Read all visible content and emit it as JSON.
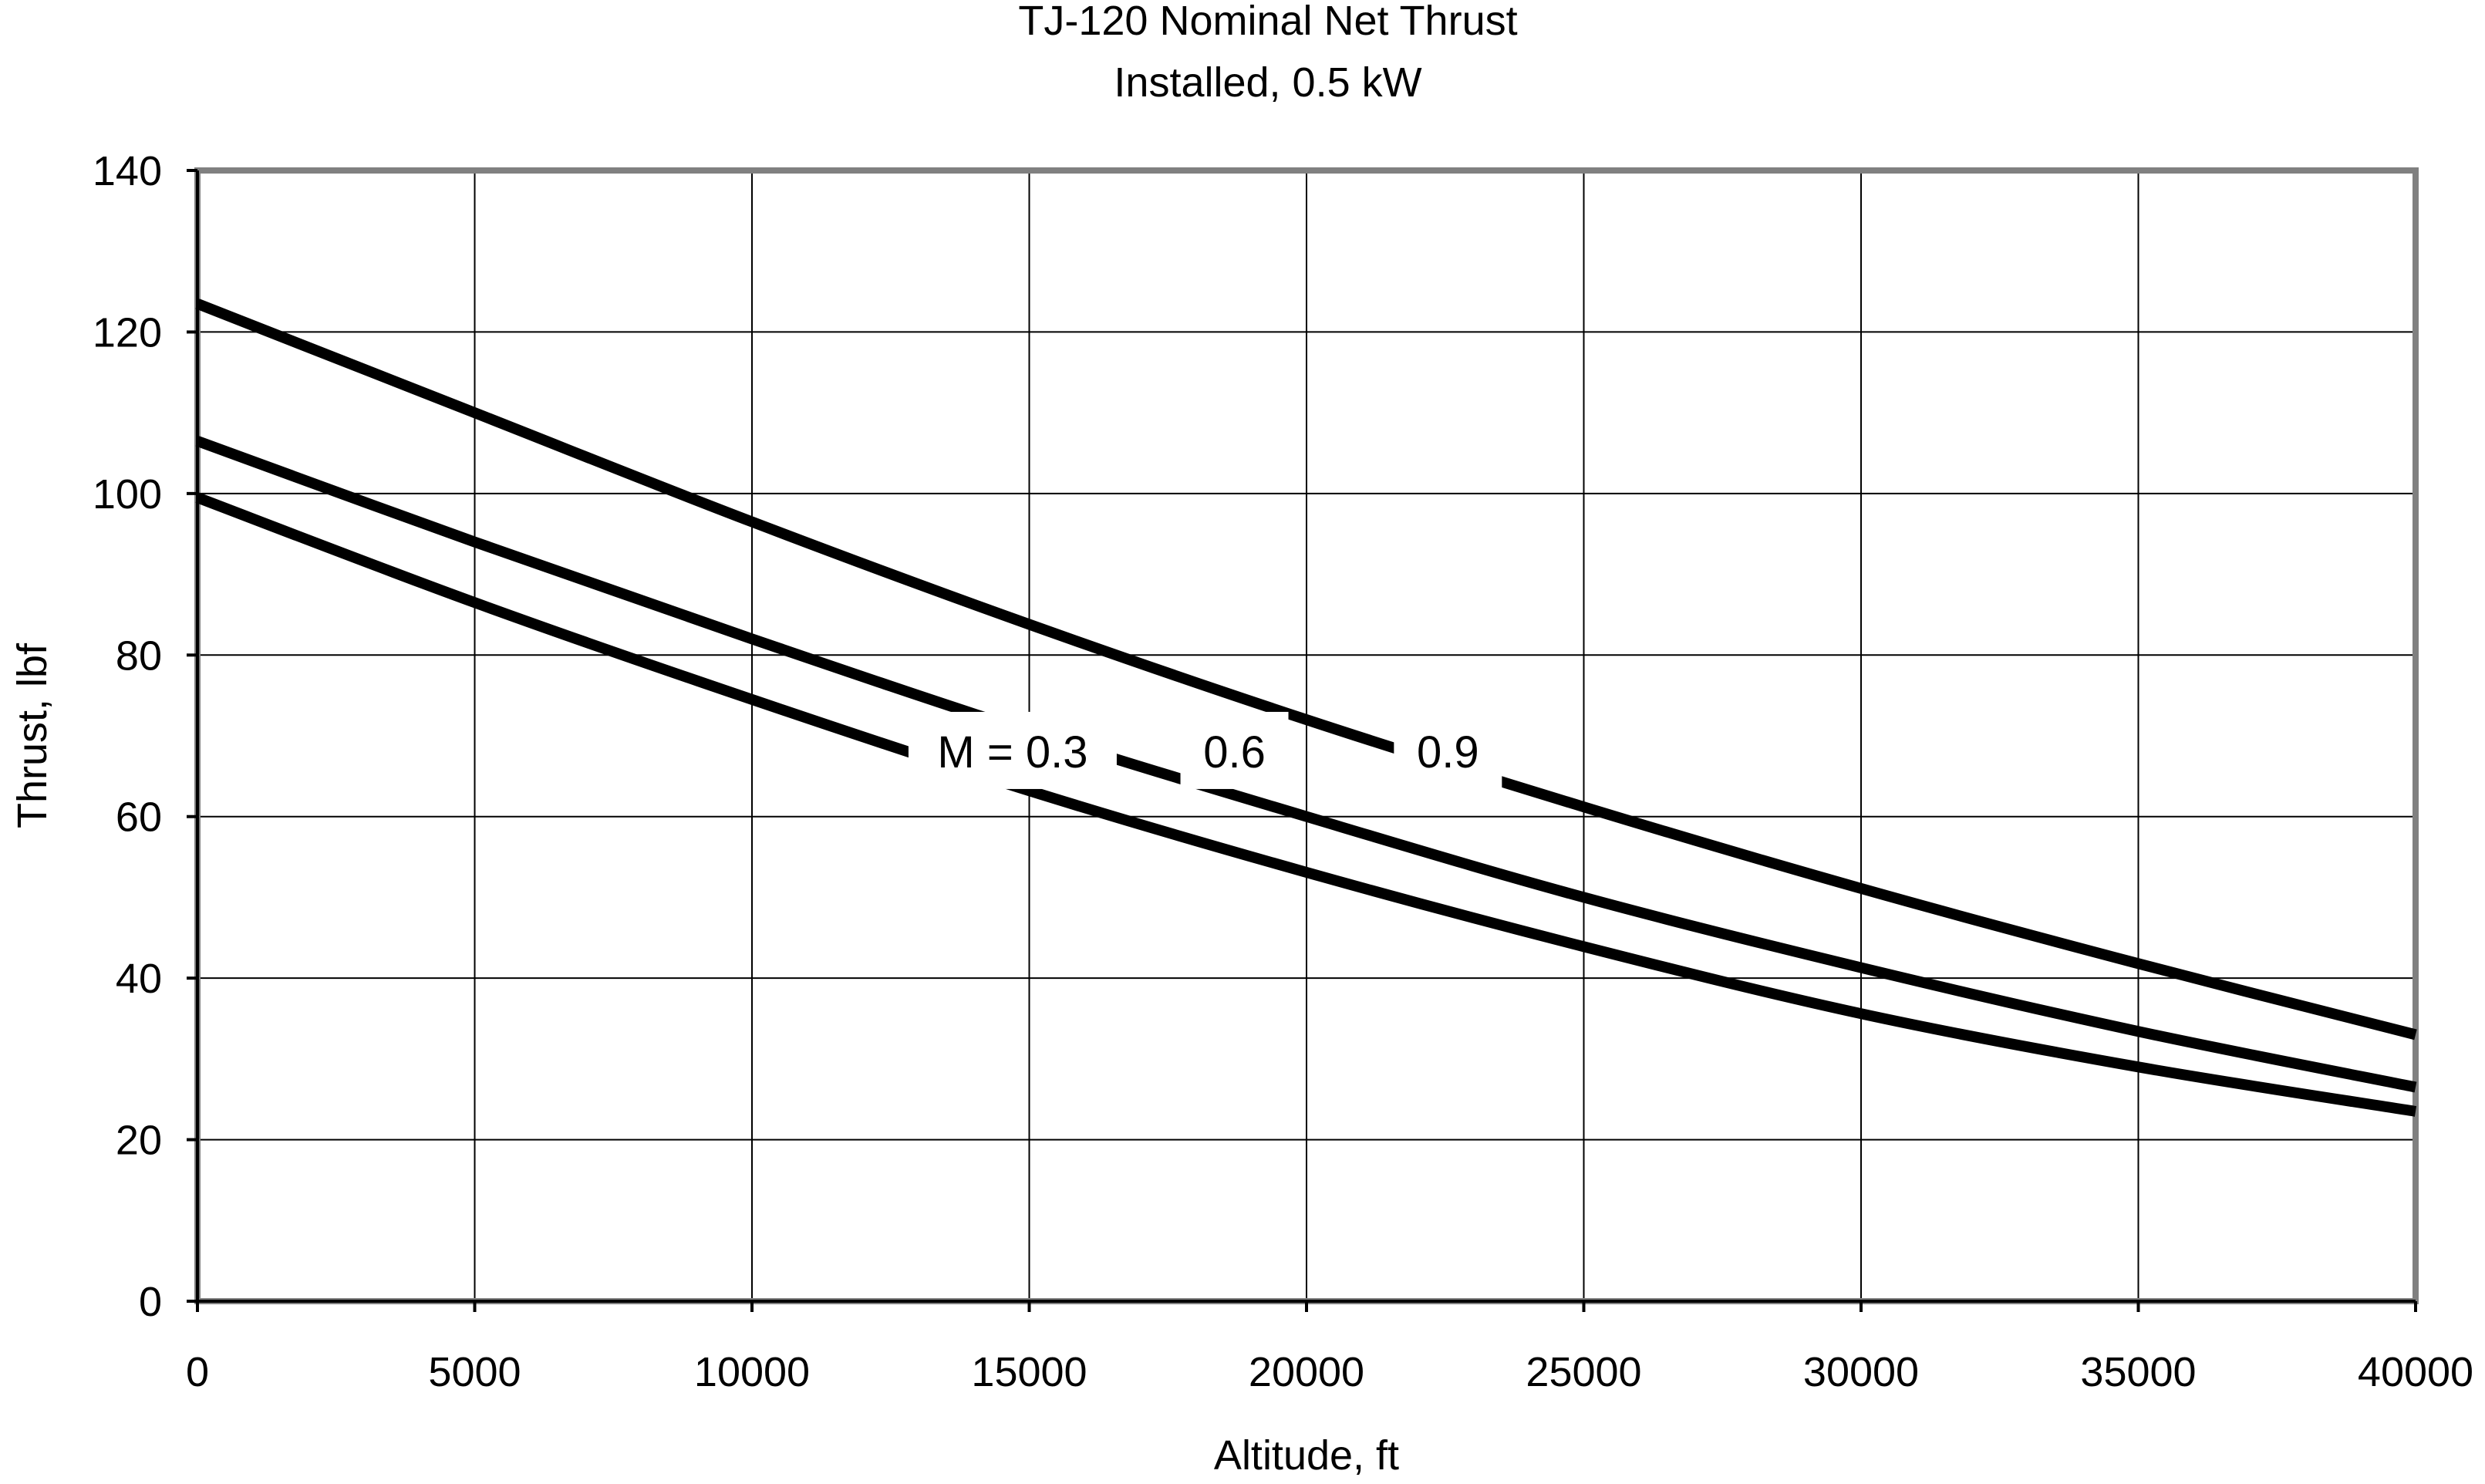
{
  "chart_data": {
    "type": "line",
    "title": "TJ-120 Nominal Net Thrust",
    "subtitle": "Installed, 0.5 kW",
    "xlabel": "Altitude, ft",
    "ylabel": "Thrust, lbf",
    "xlim": [
      0,
      40000
    ],
    "ylim": [
      0,
      140
    ],
    "xticks": [
      0,
      5000,
      10000,
      15000,
      20000,
      25000,
      30000,
      35000,
      40000
    ],
    "yticks": [
      0,
      20,
      40,
      60,
      80,
      100,
      120,
      140
    ],
    "xtick_labels": [
      "0",
      "5000",
      "10000",
      "15000",
      "20000",
      "25000",
      "30000",
      "35000",
      "40000"
    ],
    "ytick_labels": [
      "0",
      "20",
      "40",
      "60",
      "80",
      "100",
      "120",
      "140"
    ],
    "grid": true,
    "x": [
      0,
      5000,
      10000,
      15000,
      20000,
      25000,
      30000,
      35000,
      40000
    ],
    "series": [
      {
        "values": [
          99.5,
          86.5,
          74.5,
          63.2,
          53.1,
          43.9,
          35.6,
          29.0,
          23.5
        ]
      },
      {
        "values": [
          106.5,
          94.0,
          82.0,
          70.5,
          60.0,
          50.0,
          41.3,
          33.4,
          26.5
        ]
      },
      {
        "values": [
          123.5,
          110.0,
          96.5,
          83.8,
          72.0,
          61.2,
          51.1,
          41.8,
          33.0
        ]
      }
    ],
    "annotations": [
      {
        "text": "M = 0.3",
        "x": 14700,
        "y": 68
      },
      {
        "text": "0.6",
        "x": 18700,
        "y": 68
      },
      {
        "text": "0.9",
        "x": 22550,
        "y": 68
      }
    ],
    "colors": {
      "line": "#000000",
      "grid": "#000000",
      "frame": "#808080",
      "background": "#ffffff"
    }
  }
}
